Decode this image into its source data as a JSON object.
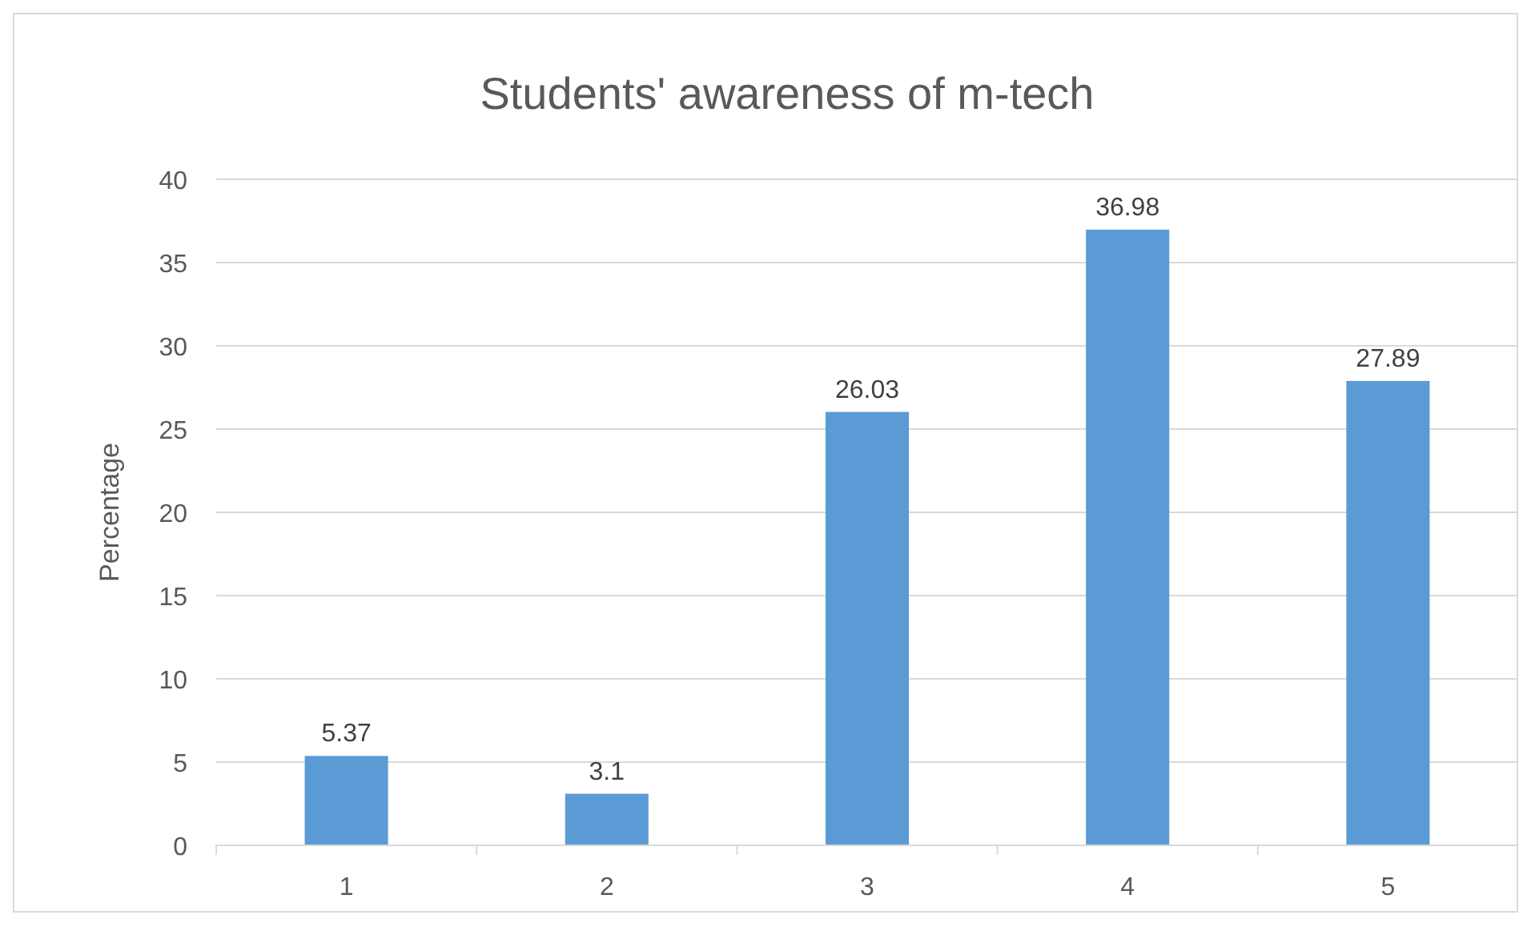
{
  "chart_data": {
    "type": "bar",
    "title": "Students' awareness of m-tech",
    "ylabel": "Percentage",
    "categories": [
      "1",
      "2",
      "3",
      "4",
      "5"
    ],
    "values": [
      5.37,
      3.1,
      26.03,
      36.98,
      27.89
    ],
    "color": "#5b9bd5",
    "ylim": [
      0,
      40
    ],
    "yticks": [
      0,
      5,
      10,
      15,
      20,
      25,
      30,
      35,
      40
    ],
    "grid": "y",
    "data_labels": true
  }
}
